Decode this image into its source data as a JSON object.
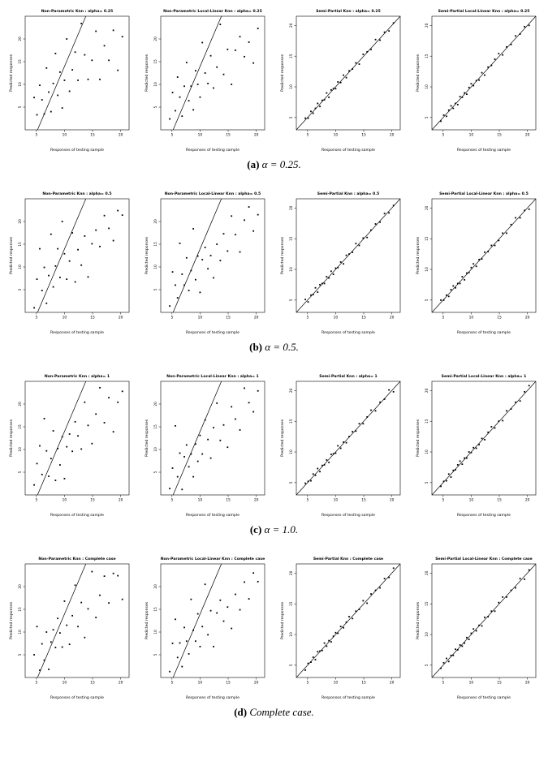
{
  "figure": {
    "captions": [
      {
        "label": "(a)",
        "text": "α = 0.25."
      },
      {
        "label": "(b)",
        "text": "α = 0.5."
      },
      {
        "label": "(c)",
        "text": "α = 1.0."
      },
      {
        "label": "(d)",
        "text": "Complete case."
      }
    ]
  },
  "shared": {
    "xlabel": "Responses of testing sample",
    "ylabel": "Predicted responses",
    "xlim": [
      3,
      21.5
    ],
    "xticks": [
      5,
      10,
      15,
      20
    ],
    "grid": false,
    "point_color": "#000000",
    "line_color": "#000000",
    "x": [
      4.6,
      5.1,
      5.6,
      6.0,
      6.4,
      6.8,
      7.2,
      7.6,
      8.0,
      8.4,
      8.8,
      9.2,
      9.6,
      10.0,
      10.4,
      10.9,
      11.4,
      11.9,
      12.4,
      13.0,
      13.6,
      14.2,
      14.9,
      15.6,
      16.3,
      17.1,
      17.9,
      18.7,
      19.5,
      20.3
    ]
  },
  "chart_data": [
    {
      "type": "scatter",
      "row": 0,
      "col": 0,
      "title": "Non-Parametric Knn : alpha= 0.25",
      "ylim": [
        0,
        25
      ],
      "yticks": [
        5,
        10,
        15,
        20
      ],
      "line": [
        [
          5.2,
          0
        ],
        [
          13.8,
          25
        ]
      ],
      "y": [
        7.1,
        3.3,
        9.8,
        6.6,
        3.5,
        13.6,
        8.3,
        4.0,
        10.2,
        16.8,
        7.6,
        12.7,
        4.8,
        10.9,
        20.0,
        8.5,
        13.2,
        17.1,
        10.9,
        23.4,
        16.5,
        11.1,
        15.3,
        21.7,
        11.1,
        18.5,
        15.3,
        21.9,
        13.1,
        20.5
      ]
    },
    {
      "type": "scatter",
      "row": 0,
      "col": 1,
      "title": "Non-Parametric Local-Linear Knn : alpha= 0.25",
      "ylim": [
        0,
        25
      ],
      "yticks": [
        5,
        10,
        15,
        20
      ],
      "line": [
        [
          5.2,
          0
        ],
        [
          13.8,
          25
        ]
      ],
      "y": [
        2.4,
        8.2,
        4.2,
        11.6,
        7.2,
        3.0,
        9.6,
        14.8,
        6.4,
        9.6,
        4.4,
        13.0,
        10.0,
        7.2,
        19.2,
        12.5,
        10.2,
        16.3,
        9.2,
        13.8,
        23.2,
        12.2,
        17.7,
        10.0,
        17.5,
        20.5,
        16.1,
        19.3,
        14.7,
        22.3
      ]
    },
    {
      "type": "scatter",
      "row": 0,
      "col": 2,
      "title": "Semi-Partial Knn : alpha= 0.25",
      "ylim": [
        3,
        21.5
      ],
      "yticks": [
        5,
        10,
        15,
        20
      ],
      "line": [
        [
          3,
          3
        ],
        [
          21.5,
          21.5
        ]
      ],
      "y": [
        4.9,
        4.9,
        6.0,
        5.7,
        6.5,
        7.3,
        6.8,
        7.8,
        7.9,
        9.0,
        8.3,
        9.5,
        9.7,
        9.7,
        10.8,
        10.7,
        11.9,
        11.5,
        12.6,
        12.9,
        13.9,
        13.7,
        15.3,
        15.7,
        16.1,
        17.7,
        17.6,
        18.9,
        19.1,
        20.4
      ]
    },
    {
      "type": "scatter",
      "row": 0,
      "col": 3,
      "title": "Semi-Partial Local-Linear Knn : alpha= 0.25",
      "ylim": [
        3,
        21.5
      ],
      "yticks": [
        5,
        10,
        15,
        20
      ],
      "line": [
        [
          3,
          3
        ],
        [
          21.5,
          21.5
        ]
      ],
      "y": [
        4.4,
        5.4,
        5.2,
        6.2,
        6.9,
        6.5,
        7.3,
        7.1,
        8.4,
        8.3,
        9.0,
        8.8,
        9.9,
        10.5,
        10.2,
        11.0,
        11.1,
        12.3,
        11.9,
        13.2,
        13.5,
        14.5,
        15.4,
        15.2,
        16.5,
        16.9,
        18.3,
        18.6,
        19.8,
        20.0
      ]
    },
    {
      "type": "scatter",
      "row": 1,
      "col": 0,
      "title": "Non-Parametric Knn : alpha= 0.5",
      "ylim": [
        0,
        25
      ],
      "yticks": [
        5,
        10,
        15,
        20
      ],
      "line": [
        [
          5.2,
          0
        ],
        [
          13.8,
          25
        ]
      ],
      "y": [
        1.0,
        7.3,
        14.0,
        4.8,
        9.9,
        2.0,
        8.1,
        17.2,
        5.6,
        10.2,
        14.0,
        7.7,
        20.0,
        12.9,
        7.3,
        11.3,
        17.5,
        6.7,
        13.8,
        10.4,
        16.8,
        7.8,
        15.1,
        18.1,
        14.5,
        21.3,
        18.5,
        15.8,
        22.4,
        21.4
      ]
    },
    {
      "type": "scatter",
      "row": 1,
      "col": 1,
      "title": "Non-Parametric Local-Linear Knn : alpha= 0.5",
      "ylim": [
        0,
        25
      ],
      "yticks": [
        5,
        10,
        15,
        20
      ],
      "line": [
        [
          5.2,
          0
        ],
        [
          13.8,
          25
        ]
      ],
      "y": [
        1.4,
        8.9,
        6.0,
        3.2,
        15.2,
        8.4,
        6.0,
        12.0,
        4.8,
        9.2,
        18.4,
        7.2,
        12.4,
        4.4,
        11.6,
        14.3,
        9.6,
        12.5,
        7.6,
        15.0,
        11.4,
        17.3,
        13.5,
        21.2,
        17.1,
        13.3,
        20.3,
        23.2,
        17.9,
        21.5
      ]
    },
    {
      "type": "scatter",
      "row": 1,
      "col": 2,
      "title": "Semi-Partial Knn : alpha= 0.5",
      "ylim": [
        3,
        21.5
      ],
      "yticks": [
        5,
        10,
        15,
        20
      ],
      "line": [
        [
          3,
          3
        ],
        [
          21.5,
          21.5
        ]
      ],
      "y": [
        5.1,
        4.7,
        5.8,
        5.9,
        7.0,
        6.3,
        7.5,
        7.7,
        7.7,
        8.8,
        8.6,
        9.7,
        9.2,
        10.2,
        10.3,
        11.2,
        10.9,
        12.3,
        12.5,
        12.8,
        14.2,
        13.9,
        15.1,
        15.2,
        16.4,
        17.4,
        17.7,
        19.1,
        19.2,
        20.4
      ]
    },
    {
      "type": "scatter",
      "row": 1,
      "col": 3,
      "title": "Semi-Partial Local-Linear Knn : alpha= 0.5",
      "ylim": [
        3,
        21.5
      ],
      "yticks": [
        5,
        10,
        15,
        20
      ],
      "line": [
        [
          3,
          3
        ],
        [
          21.5,
          21.5
        ]
      ],
      "y": [
        5.0,
        5.0,
        5.8,
        5.6,
        6.7,
        7.3,
        7.0,
        7.7,
        7.7,
        8.8,
        8.3,
        9.4,
        9.5,
        10.3,
        10.9,
        10.5,
        11.6,
        11.7,
        12.8,
        12.9,
        13.9,
        13.9,
        14.7,
        15.9,
        15.9,
        17.3,
        18.4,
        18.4,
        19.6,
        19.8
      ]
    },
    {
      "type": "scatter",
      "row": 2,
      "col": 0,
      "title": "Non-Parametric Knn : alpha= 1",
      "ylim": [
        0,
        25
      ],
      "yticks": [
        5,
        10,
        15,
        20
      ],
      "line": [
        [
          5.2,
          0
        ],
        [
          13.8,
          25
        ]
      ],
      "y": [
        2.2,
        6.9,
        10.8,
        4.5,
        16.8,
        9.7,
        4.1,
        8.0,
        14.1,
        3.2,
        10.2,
        6.6,
        12.8,
        3.6,
        10.6,
        13.4,
        9.6,
        16.1,
        13.0,
        10.1,
        20.4,
        15.3,
        11.3,
        17.8,
        23.6,
        15.9,
        21.4,
        13.9,
        20.4,
        22.8
      ]
    },
    {
      "type": "scatter",
      "row": 2,
      "col": 1,
      "title": "Non-Parametric Local-Linear Knn : alpha= 1",
      "ylim": [
        0,
        25
      ],
      "yticks": [
        5,
        10,
        15,
        20
      ],
      "line": [
        [
          5.2,
          0
        ],
        [
          13.8,
          25
        ]
      ],
      "y": [
        1.4,
        5.9,
        15.2,
        4.0,
        9.2,
        1.2,
        8.4,
        11.0,
        6.2,
        9.0,
        4.0,
        11.2,
        7.4,
        13.1,
        9.0,
        16.5,
        12.2,
        8.1,
        14.8,
        20.2,
        12.0,
        15.4,
        10.5,
        19.4,
        16.7,
        14.3,
        23.5,
        20.3,
        18.3,
        22.9
      ]
    },
    {
      "type": "scatter",
      "row": 2,
      "col": 2,
      "title": "Semi-Partial Knn : alpha= 1",
      "ylim": [
        3,
        21.5
      ],
      "yticks": [
        5,
        10,
        15,
        20
      ],
      "line": [
        [
          3,
          3
        ],
        [
          21.5,
          21.5
        ]
      ],
      "y": [
        4.9,
        5.2,
        5.3,
        6.4,
        6.2,
        7.3,
        6.8,
        7.8,
        7.9,
        8.7,
        8.3,
        9.6,
        9.7,
        9.8,
        11.0,
        10.6,
        11.6,
        11.5,
        12.5,
        13.3,
        13.4,
        14.6,
        14.6,
        15.7,
        16.8,
        16.7,
        18.1,
        18.6,
        20.1,
        19.8
      ]
    },
    {
      "type": "scatter",
      "row": 2,
      "col": 3,
      "title": "Semi-Partial Local-Linear Knn : alpha= 1",
      "ylim": [
        3,
        21.5
      ],
      "yticks": [
        5,
        10,
        15,
        20
      ],
      "line": [
        [
          3,
          3
        ],
        [
          21.5,
          21.5
        ]
      ],
      "y": [
        4.4,
        5.2,
        5.3,
        6.4,
        5.9,
        7.0,
        7.1,
        7.9,
        8.5,
        8.0,
        9.0,
        9.0,
        10.0,
        9.9,
        10.7,
        10.6,
        11.2,
        12.2,
        12.0,
        13.2,
        14.1,
        13.9,
        15.0,
        15.1,
        16.7,
        17.0,
        18.1,
        18.3,
        19.8,
        20.8
      ]
    },
    {
      "type": "scatter",
      "row": 3,
      "col": 0,
      "title": "Non-Parametric Knn : Complete case",
      "ylim": [
        0,
        25
      ],
      "yticks": [
        5,
        10,
        15,
        20
      ],
      "line": [
        [
          5.2,
          0
        ],
        [
          13.8,
          25
        ]
      ],
      "y": [
        5.0,
        11.2,
        1.6,
        7.4,
        3.8,
        10.0,
        1.8,
        7.8,
        10.5,
        6.6,
        13.0,
        9.8,
        6.7,
        16.8,
        11.5,
        7.3,
        13.6,
        20.3,
        11.2,
        16.5,
        8.8,
        15.1,
        23.3,
        13.2,
        18.1,
        22.3,
        16.4,
        22.9,
        22.4,
        17.2
      ]
    },
    {
      "type": "scatter",
      "row": 3,
      "col": 1,
      "title": "Non-Parametric Local-Linear Knn : Complete case",
      "ylim": [
        0,
        25
      ],
      "yticks": [
        5,
        10,
        15,
        20
      ],
      "line": [
        [
          5.2,
          0
        ],
        [
          13.8,
          25
        ]
      ],
      "y": [
        1.3,
        7.5,
        12.8,
        4.4,
        7.6,
        2.4,
        11.0,
        8.0,
        5.2,
        17.2,
        10.4,
        8.0,
        14.0,
        6.8,
        11.2,
        20.5,
        9.4,
        14.7,
        6.8,
        14.2,
        17.0,
        12.4,
        15.5,
        10.8,
        18.3,
        14.9,
        21.0,
        17.3,
        23.0,
        21.1
      ]
    },
    {
      "type": "scatter",
      "row": 3,
      "col": 2,
      "title": "Semi-Partial Knn : Complete case",
      "ylim": [
        3,
        21.5
      ],
      "yticks": [
        5,
        10,
        15,
        20
      ],
      "line": [
        [
          3,
          3
        ],
        [
          21.5,
          21.5
        ]
      ],
      "y": [
        4.2,
        5.3,
        5.5,
        6.3,
        5.9,
        7.2,
        7.3,
        7.4,
        8.6,
        8.1,
        9.0,
        8.8,
        9.7,
        10.3,
        10.2,
        11.3,
        11.1,
        12.0,
        12.9,
        12.6,
        13.8,
        14.1,
        15.5,
        15.1,
        16.6,
        17.2,
        17.6,
        19.1,
        19.3,
        20.8
      ]
    },
    {
      "type": "scatter",
      "row": 3,
      "col": 3,
      "title": "Semi-Partial Local-Linear Knn : Complete case",
      "ylim": [
        3,
        21.5
      ],
      "yticks": [
        5,
        10,
        15,
        20
      ],
      "line": [
        [
          3,
          3
        ],
        [
          21.5,
          21.5
        ]
      ],
      "y": [
        4.5,
        5.4,
        6.1,
        5.6,
        6.6,
        6.6,
        7.6,
        7.5,
        8.3,
        8.1,
        8.6,
        9.5,
        9.2,
        10.2,
        10.9,
        10.6,
        11.5,
        11.4,
        12.8,
        12.9,
        13.8,
        13.8,
        15.2,
        16.1,
        16.1,
        17.2,
        17.6,
        19.1,
        19.0,
        20.5
      ]
    }
  ]
}
